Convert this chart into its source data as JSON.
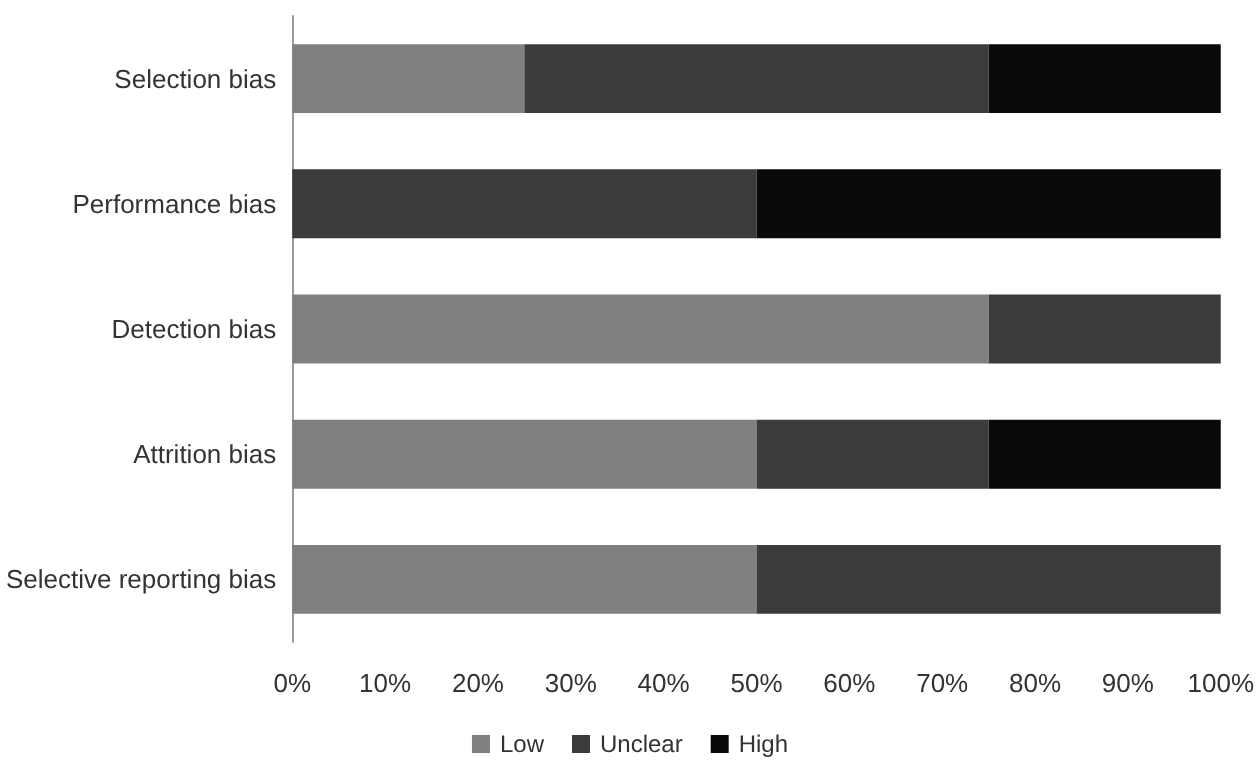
{
  "chart_data": {
    "type": "bar",
    "orientation": "horizontal",
    "stacked": true,
    "categories": [
      "Selection bias",
      "Performance bias",
      "Detection bias",
      "Attrition bias",
      "Selective reporting bias"
    ],
    "series": [
      {
        "name": "Low",
        "color": "#808080",
        "values": [
          25,
          0,
          75,
          50,
          50
        ]
      },
      {
        "name": "Unclear",
        "color": "#3b3b3b",
        "values": [
          50,
          50,
          25,
          25,
          50
        ]
      },
      {
        "name": "High",
        "color": "#0a0a0a",
        "values": [
          25,
          50,
          0,
          25,
          0
        ]
      }
    ],
    "xlim": [
      0,
      100
    ],
    "xticks": [
      {
        "value": 0,
        "label": "0%"
      },
      {
        "value": 10,
        "label": "10%"
      },
      {
        "value": 20,
        "label": "20%"
      },
      {
        "value": 30,
        "label": "30%"
      },
      {
        "value": 40,
        "label": "40%"
      },
      {
        "value": 50,
        "label": "50%"
      },
      {
        "value": 60,
        "label": "60%"
      },
      {
        "value": 70,
        "label": "70%"
      },
      {
        "value": 80,
        "label": "80%"
      },
      {
        "value": 90,
        "label": "90%"
      },
      {
        "value": 100,
        "label": "100%"
      }
    ],
    "grid": false,
    "legend": "bottom"
  }
}
